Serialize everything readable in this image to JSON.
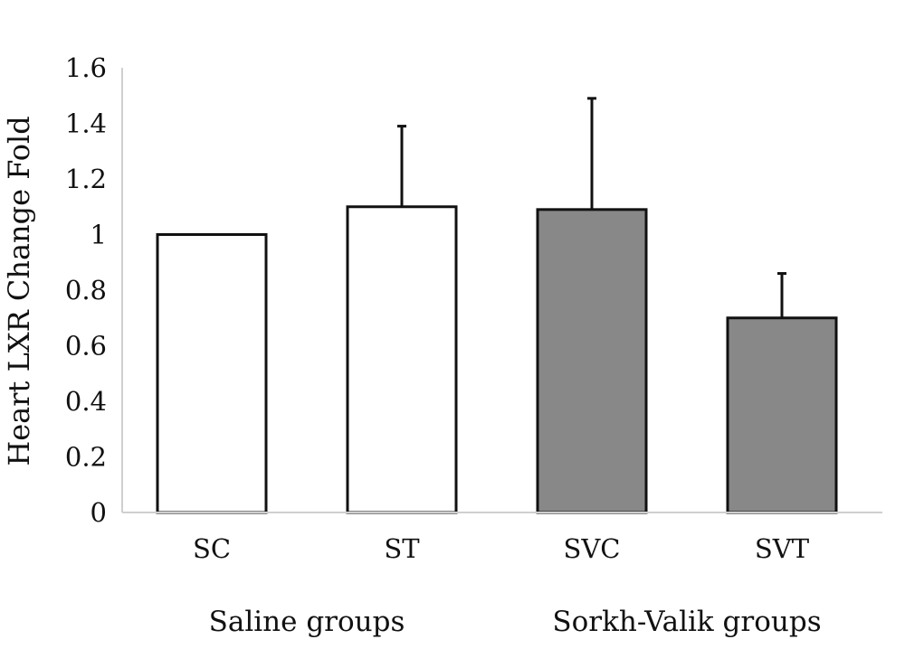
{
  "chart_data": {
    "type": "bar",
    "ylabel": "Heart LXR Change Fold",
    "ylim": [
      0,
      1.6
    ],
    "yticks": [
      "0",
      "0.2",
      "0.4",
      "0.6",
      "0.8",
      "1",
      "1.2",
      "1.4",
      "1.6"
    ],
    "ytick_values": [
      0,
      0.2,
      0.4,
      0.6,
      0.8,
      1,
      1.2,
      1.4,
      1.6
    ],
    "categories": [
      "SC",
      "ST",
      "SVC",
      "SVT"
    ],
    "values": [
      1.0,
      1.1,
      1.09,
      0.7
    ],
    "error_upper": [
      0.0,
      0.29,
      0.4,
      0.16
    ],
    "bar_colors": [
      "#ffffff",
      "#ffffff",
      "#888888",
      "#888888"
    ],
    "groups": [
      {
        "label": "Saline groups",
        "categories": [
          "SC",
          "ST"
        ]
      },
      {
        "label": "Sorkh-Valik groups",
        "categories": [
          "SVC",
          "SVT"
        ]
      }
    ],
    "grid": false
  }
}
